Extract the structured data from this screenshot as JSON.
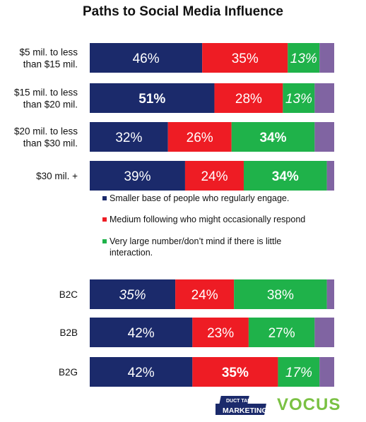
{
  "chart_data": {
    "type": "bar",
    "stacked": true,
    "orientation": "horizontal",
    "title": "Paths to Social Media Influence",
    "categories_top": [
      "$5 mil. to less than $15 mil.",
      "$15 mil. to less than $20 mil.",
      "$20 mil. to less than $30 mil.",
      "$30 mil. +"
    ],
    "categories_bottom": [
      "B2C",
      "B2B",
      "B2G"
    ],
    "category_lines": {
      "$5 mil. to less than $15 mil.": [
        "$5 mil. to less",
        "than $15 mil."
      ],
      "$15 mil. to less than $20 mil.": [
        "$15 mil. to less",
        "than $20 mil."
      ],
      "$20 mil. to less than $30 mil.": [
        "$20 mil. to less",
        "than $30 mil."
      ],
      "$30 mil. +": [
        "$30 mil. +"
      ],
      "B2C": [
        "B2C"
      ],
      "B2B": [
        "B2B"
      ],
      "B2G": [
        "B2G"
      ]
    },
    "series": [
      {
        "name": "Smaller base of people who regularly engage.",
        "color": "#1b2a6b",
        "values": [
          46,
          51,
          32,
          39,
          35,
          42,
          42
        ]
      },
      {
        "name": "Medium following who might occasionally respond",
        "color": "#ee1c24",
        "values": [
          35,
          28,
          26,
          24,
          24,
          23,
          35
        ]
      },
      {
        "name": "Very large number/don’t mind if there is little interaction.",
        "color": "#1fb24a",
        "values": [
          13,
          13,
          34,
          34,
          38,
          27,
          17
        ]
      },
      {
        "name": "",
        "color": "#8064a2",
        "values": [
          6,
          8,
          8,
          3,
          3,
          8,
          6
        ]
      }
    ],
    "label_styles": [
      [
        "normal",
        "normal",
        "italic",
        null
      ],
      [
        "bold",
        "normal",
        "italic",
        null
      ],
      [
        "normal",
        "normal",
        "bold",
        null
      ],
      [
        "normal",
        "normal",
        "bold",
        null
      ],
      [
        "italic",
        "normal",
        "normal",
        null
      ],
      [
        "normal",
        "normal",
        "normal",
        null
      ],
      [
        "normal",
        "bold",
        "italic",
        null
      ]
    ],
    "legend_lines": [
      [
        "Smaller base of people who regularly engage."
      ],
      [
        "Medium following who might occasionally respond"
      ],
      [
        "Very large number/don’t mind if there is little",
        "interaction."
      ]
    ],
    "xlim": [
      0,
      100
    ]
  },
  "logos": {
    "left_text": "DUCT TAPE MARKETING",
    "right_text": "VOCUS"
  }
}
